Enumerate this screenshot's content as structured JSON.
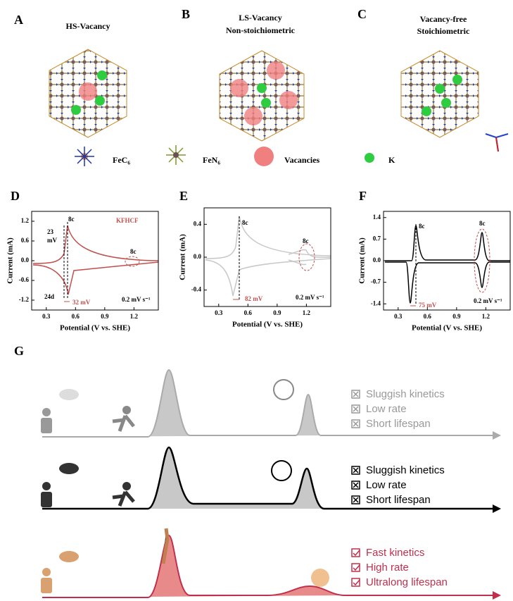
{
  "top_panels": [
    {
      "label": "A",
      "title": [
        "HS-Vacancy"
      ]
    },
    {
      "label": "B",
      "title": [
        "LS-Vacancy",
        "Non-stoichiometric"
      ]
    },
    {
      "label": "C",
      "title": [
        "Vacancy-free",
        "Stoichiometric"
      ]
    }
  ],
  "legend": [
    "FeC₆",
    "FeN₆",
    "Vacancies",
    "K"
  ],
  "plots": [
    {
      "label": "D",
      "xlim": [
        0.15,
        1.45
      ],
      "ylim": [
        -1.5,
        1.5
      ],
      "xticks": [
        0.3,
        0.6,
        0.9,
        1.2
      ],
      "yticks": [
        1.2,
        0.6,
        {
          "value": 0,
          "label": "0.0"
        },
        -0.6,
        -1.2
      ],
      "xlabel": "Potential (V vs. SHE)",
      "ylabel": "Current (mA)",
      "annotations": [
        "8c",
        "23",
        "mV",
        "8c",
        "24d",
        "32 mV",
        "0.2 mV s⁻¹",
        "KFHCF"
      ]
    },
    {
      "label": "E",
      "xlim": [
        0.15,
        1.45
      ],
      "ylim": [
        -0.6,
        0.6
      ],
      "xticks": [
        0.3,
        0.6,
        0.9,
        1.2
      ],
      "yticks": [
        0.4,
        {
          "value": 0,
          "label": "0.0"
        },
        -0.4
      ],
      "xlabel": "Potential (V vs. SHE)",
      "ylabel": "Current (mA)",
      "annotations": [
        "8c",
        "8c",
        "82 mV",
        "0.2 mV s⁻¹"
      ]
    },
    {
      "label": "F",
      "xlim": [
        0.15,
        1.45
      ],
      "ylim": [
        -1.6,
        1.6
      ],
      "xticks": [
        0.3,
        0.6,
        0.9,
        1.2
      ],
      "yticks": [
        1.4,
        0.7,
        {
          "value": 0,
          "label": "0.0"
        },
        -0.7,
        -1.4
      ],
      "xlabel": "Potential (V vs. SHE)",
      "ylabel": "Current (mA)",
      "annotations": [
        "8c",
        "8c",
        "75 mV",
        "0.2 mV s⁻¹"
      ]
    }
  ],
  "g": {
    "label": "G",
    "rows": [
      [
        "Sluggish kinetics",
        "Low rate",
        "Short lifespan"
      ],
      [
        "Sluggish kinetics",
        "Low rate",
        "Short lifespan"
      ],
      [
        "Fast kinetics",
        "High rate",
        "Ultralong lifespan"
      ]
    ]
  }
}
